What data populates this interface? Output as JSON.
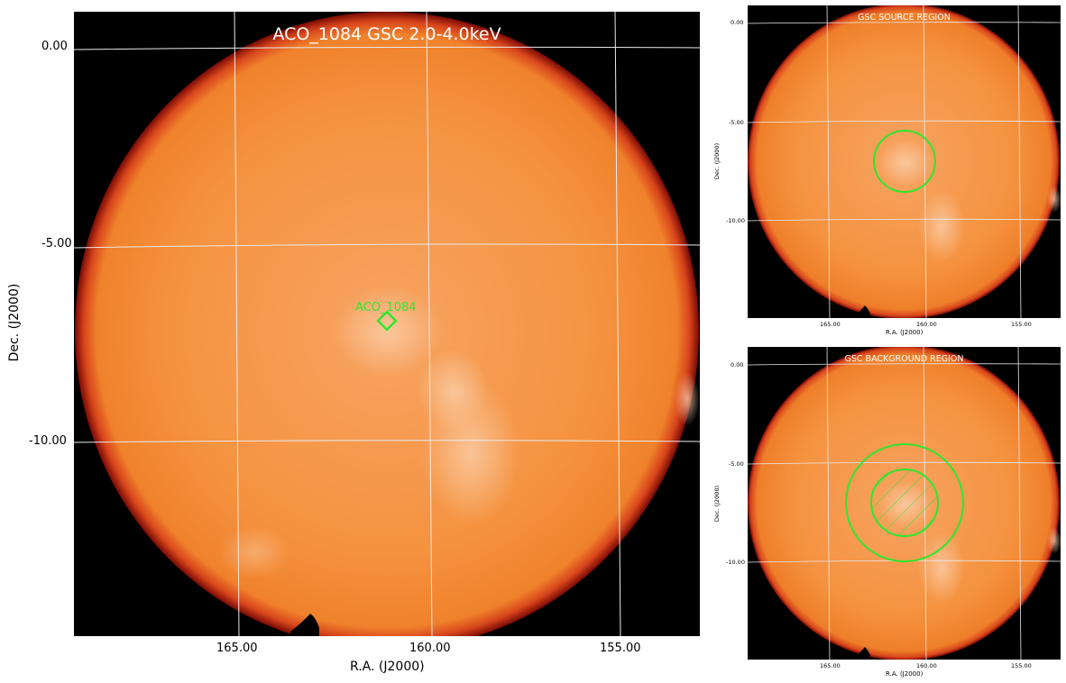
{
  "main": {
    "title": "ACO_1084 GSC 2.0-4.0keV",
    "source_label": "ACO_1084",
    "xlabel": "R.A. (J2000)",
    "ylabel": "Dec. (J2000)",
    "x_ticks": [
      "165.00",
      "160.00",
      "155.00"
    ],
    "y_ticks": [
      "0.00",
      "-5.00",
      "-10.00"
    ]
  },
  "source_panel": {
    "title": "GSC SOURCE REGION",
    "xlabel": "R.A. (J2000)",
    "ylabel": "Dec. (J2000)",
    "x_ticks": [
      "165.00",
      "160.00",
      "155.00"
    ],
    "y_ticks": [
      "0.00",
      "-5.00",
      "-10.00"
    ]
  },
  "background_panel": {
    "title": "GSC BACKGROUND REGION",
    "xlabel": "R.A. (J2000)",
    "ylabel": "Dec. (J2000)",
    "x_ticks": [
      "165.00",
      "160.00",
      "155.00"
    ],
    "y_ticks": [
      "0.00",
      "-5.00",
      "-10.00"
    ]
  },
  "colors": {
    "image_orange": "#f58a2e",
    "edge_red": "#d02a1a",
    "grid": "#e6e6e6",
    "region_green": "#2ee62e",
    "background": "#000000"
  }
}
